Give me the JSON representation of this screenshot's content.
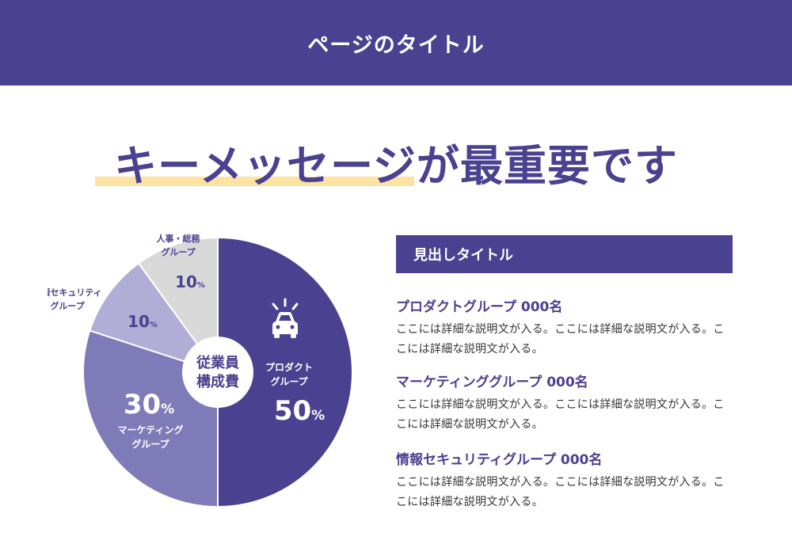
{
  "page": {
    "title": "ページのタイトル",
    "key_message": "キーメッセージが最重要です"
  },
  "colors": {
    "primary": "#4a4190",
    "highlight": "#fce3a1",
    "slice_product": "#4a4190",
    "slice_marketing": "#7f7bb8",
    "slice_security": "#b0add6",
    "slice_hr": "#d9d9d9"
  },
  "chart_data": {
    "type": "pie",
    "center_label": "従業員\n構成費",
    "slices": [
      {
        "label": "プロダクト\nグループ",
        "value": 50,
        "value_label": "50",
        "unit": "%",
        "color": "#4a4190",
        "icon": "car-icon"
      },
      {
        "label": "マーケティング\nグループ",
        "value": 30,
        "value_label": "30",
        "unit": "%",
        "color": "#7f7bb8"
      },
      {
        "label": "情報セキュリティ\nグループ",
        "value": 10,
        "value_label": "10",
        "unit": "%",
        "color": "#b0add6"
      },
      {
        "label": "人事・総務\nグループ",
        "value": 10,
        "value_label": "10",
        "unit": "%",
        "color": "#d9d9d9"
      }
    ]
  },
  "section": {
    "heading": "見出しタイトル",
    "groups": [
      {
        "title": "プロダクトグループ 000名",
        "desc": "ここには詳細な説明文が入る。ここには詳細な説明文が入る。ここには詳細な説明文が入る。"
      },
      {
        "title": "マーケティンググループ 000名",
        "desc": "ここには詳細な説明文が入る。ここには詳細な説明文が入る。ここには詳細な説明文が入る。"
      },
      {
        "title": "情報セキュリティグループ 000名",
        "desc": "ここには詳細な説明文が入る。ここには詳細な説明文が入る。ここには詳細な説明文が入る。"
      }
    ]
  }
}
